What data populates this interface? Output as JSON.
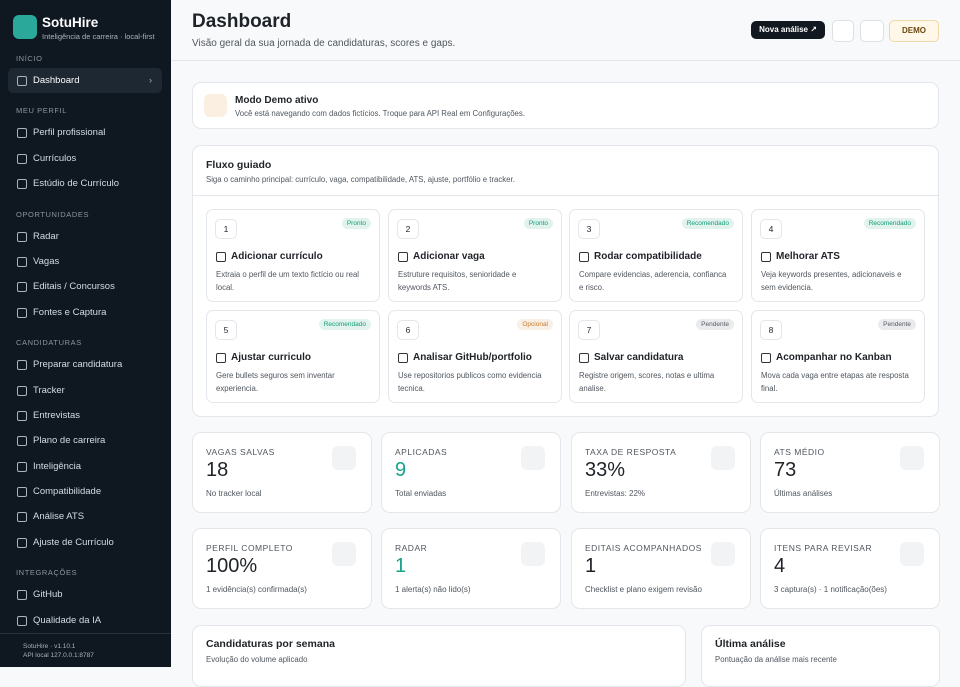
{
  "sidebar": {
    "brand": "SotuHire",
    "tagline": "Inteligência de carreira · local-first",
    "sections": [
      {
        "label": "INÍCIO",
        "items": [
          "Dashboard"
        ]
      },
      {
        "label": "MEU PERFIL",
        "items": [
          "Perfil profissional",
          "Currículos",
          "Estúdio de Currículo"
        ]
      },
      {
        "label": "OPORTUNIDADES",
        "items": [
          "Radar",
          "Vagas",
          "Editais / Concursos",
          "Fontes e Captura"
        ]
      },
      {
        "label": "CANDIDATURAS",
        "items": [
          "Preparar candidatura",
          "Tracker",
          "Entrevistas",
          "Plano de carreira",
          "Inteligência",
          "Compatibilidade",
          "Análise ATS",
          "Ajuste de Currículo"
        ]
      },
      {
        "label": "INTEGRAÇÕES",
        "items": [
          "GitHub",
          "Qualidade da IA"
        ]
      }
    ],
    "footer": [
      "SotuHire · v1.10.1",
      "API local 127.0.0.1:8787"
    ]
  },
  "header": {
    "title": "Dashboard",
    "subtitle": "Visão geral da sua jornada de candidaturas, scores e gaps.",
    "primary_button": "Nova análise ↗",
    "demo_badge": "DEMO"
  },
  "demo_banner": {
    "title": "Modo Demo ativo",
    "text": "Você está navegando com dados fictícios. Troque para API Real em Configurações."
  },
  "flow": {
    "title": "Fluxo guiado",
    "subtitle": "Siga o caminho principal: currículo, vaga, compatibilidade, ATS, ajuste, portfólio e tracker.",
    "steps": [
      {
        "number": 1,
        "badge": "Pronto",
        "badge_color": "#0f9d76",
        "title": "Adicionar currículo",
        "text": "Extraia o perfil de um texto fictício ou real local."
      },
      {
        "number": 2,
        "badge": "Pronto",
        "badge_color": "#0f9d76",
        "title": "Adicionar vaga",
        "text": "Estruture requisitos, senioridade e keywords ATS."
      },
      {
        "number": 3,
        "badge": "Recomendado",
        "badge_color": "#0f9d76",
        "title": "Rodar compatibilidade",
        "text": "Compare evidencias, aderencia, confianca e risco."
      },
      {
        "number": 4,
        "badge": "Recomendado",
        "badge_color": "#0f9d76",
        "title": "Melhorar ATS",
        "text": "Veja keywords presentes, adicionaveis e sem evidencia."
      },
      {
        "number": 5,
        "badge": "Recomendado",
        "badge_color": "#0f9d76",
        "title": "Ajustar curriculo",
        "text": "Gere bullets seguros sem inventar experiencia."
      },
      {
        "number": 6,
        "badge": "Opcional",
        "badge_color": "#c57a2c",
        "title": "Analisar GitHub/portfolio",
        "text": "Use repositorios publicos como evidencia tecnica."
      },
      {
        "number": 7,
        "badge": "Pendente",
        "badge_color": "#555b63",
        "title": "Salvar candidatura",
        "text": "Registre origem, scores, notas e ultima analise."
      },
      {
        "number": 8,
        "badge": "Pendente",
        "badge_color": "#555b63",
        "title": "Acompanhar no Kanban",
        "text": "Mova cada vaga entre etapas ate resposta final."
      }
    ]
  },
  "stats": [
    {
      "label": "VAGAS SALVAS",
      "value": "18",
      "value_color": "#1f2328",
      "note": "No tracker local"
    },
    {
      "label": "APLICADAS",
      "value": "9",
      "value_color": "#14a38b",
      "note": "Total enviadas"
    },
    {
      "label": "TAXA DE RESPOSTA",
      "value": "33%",
      "value_color": "#1f2328",
      "note": "Entrevistas: 22%"
    },
    {
      "label": "ATS MÉDIO",
      "value": "73",
      "value_color": "#1f2328",
      "note": "Últimas análises"
    },
    {
      "label": "PERFIL COMPLETO",
      "value": "100%",
      "value_color": "#1f2328",
      "note": "1 evidência(s) confirmada(s)"
    },
    {
      "label": "RADAR",
      "value": "1",
      "value_color": "#14a38b",
      "note": "1 alerta(s) não lido(s)"
    },
    {
      "label": "EDITAIS ACOMPANHADOS",
      "value": "1",
      "value_color": "#1f2328",
      "note": "Checklist e plano exigem revisão"
    },
    {
      "label": "ITENS PARA REVISAR",
      "value": "4",
      "value_color": "#1f2328",
      "note": "3 captura(s) · 1 notificação(ões)"
    }
  ],
  "panels": [
    {
      "title": "Candidaturas por semana",
      "subtitle": "Evolução do volume aplicado"
    },
    {
      "title": "Última análise",
      "subtitle": "Pontuação da análise mais recente"
    }
  ]
}
